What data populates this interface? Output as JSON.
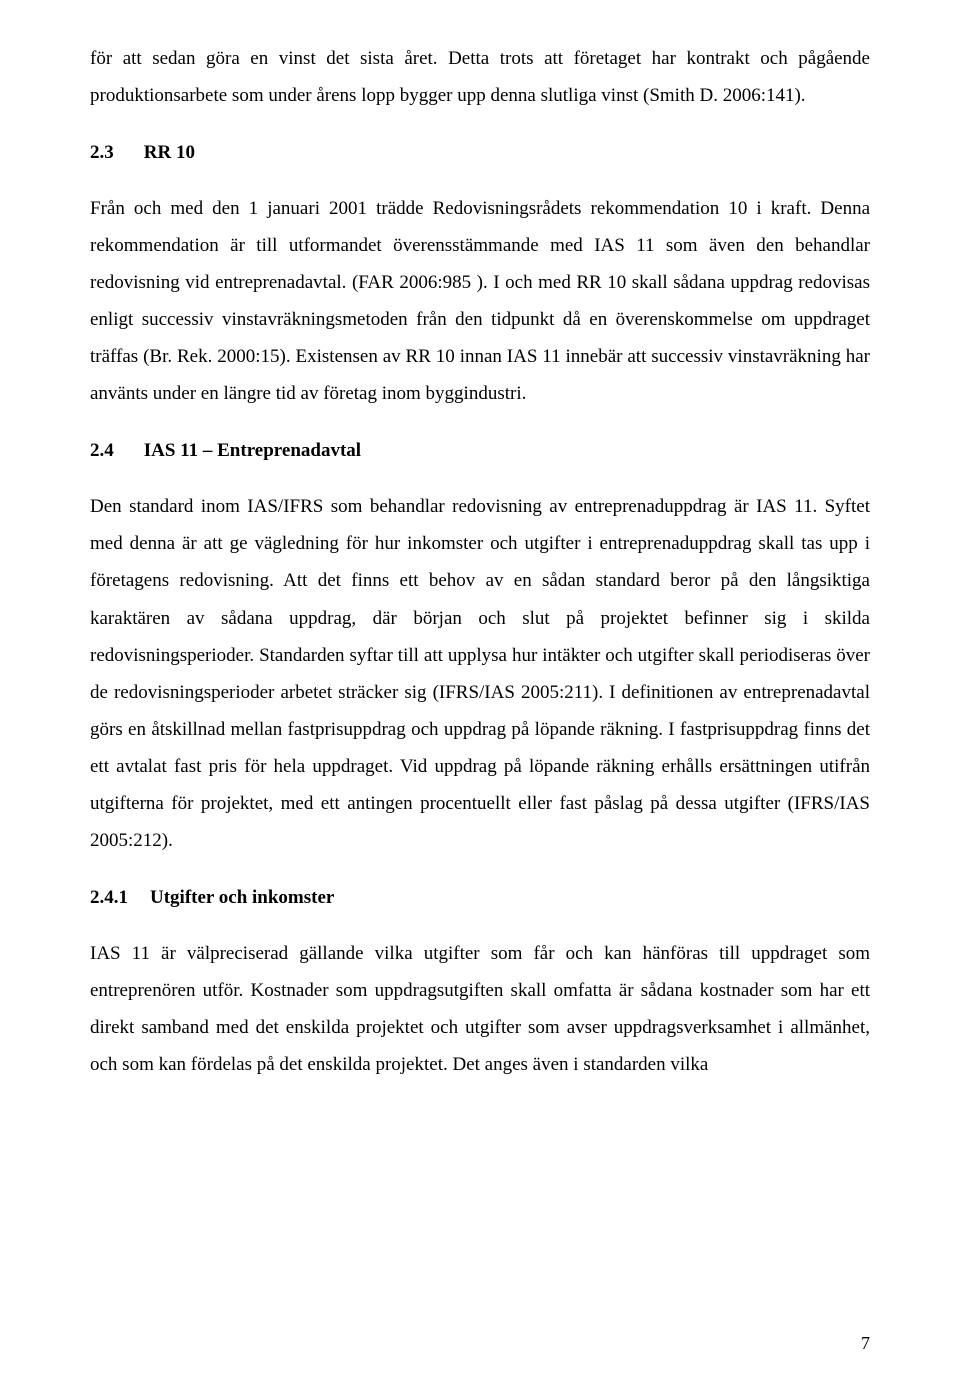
{
  "para1": "för att sedan göra en vinst det sista året. Detta trots att företaget har kontrakt och pågående produktionsarbete som under årens lopp bygger upp denna slutliga vinst (Smith D. 2006:141).",
  "section23": {
    "num": "2.3",
    "title": "RR 10"
  },
  "para2": "Från och med den 1 januari 2001 trädde Redovisningsrådets rekommendation 10 i kraft. Denna rekommendation är till utformandet överensstämmande med IAS 11 som även den behandlar redovisning vid entreprenadavtal. (FAR 2006:985 ). I och med RR 10 skall sådana uppdrag redovisas enligt successiv vinstavräkningsmetoden från den tidpunkt då en överenskommelse om uppdraget träffas (Br. Rek. 2000:15). Existensen av RR 10 innan IAS 11 innebär att successiv vinstavräkning har använts under en längre tid av företag inom byggindustri.",
  "section24": {
    "num": "2.4",
    "title": "IAS 11 – Entreprenadavtal"
  },
  "para3": "Den standard inom IAS/IFRS som behandlar redovisning av entreprenaduppdrag är IAS 11. Syftet med denna är att ge vägledning för hur inkomster och utgifter i entreprenaduppdrag skall tas upp i företagens redovisning. Att det finns ett behov av en sådan standard beror på den långsiktiga karaktären av sådana uppdrag, där början och slut på projektet befinner sig i skilda redovisningsperioder. Standarden syftar till att upplysa hur intäkter och utgifter skall periodiseras över de redovisningsperioder arbetet sträcker sig (IFRS/IAS 2005:211). I definitionen av entreprenadavtal görs en åtskillnad mellan fastprisuppdrag och uppdrag på löpande räkning. I fastprisuppdrag finns det ett avtalat fast pris för hela uppdraget. Vid uppdrag på löpande räkning erhålls ersättningen utifrån utgifterna för projektet, med ett antingen procentuellt eller fast påslag på dessa utgifter (IFRS/IAS 2005:212).",
  "section241": {
    "num": "2.4.1",
    "title": "Utgifter och inkomster"
  },
  "para4": "IAS 11 är välpreciserad gällande vilka utgifter som får och kan hänföras till uppdraget som entreprenören utför. Kostnader som uppdragsutgiften skall omfatta är sådana kostnader som har ett direkt samband med det enskilda projektet och utgifter som avser uppdragsverksamhet i allmänhet, och som kan fördelas på det enskilda projektet. Det anges även i standarden vilka",
  "pageNumber": "7"
}
